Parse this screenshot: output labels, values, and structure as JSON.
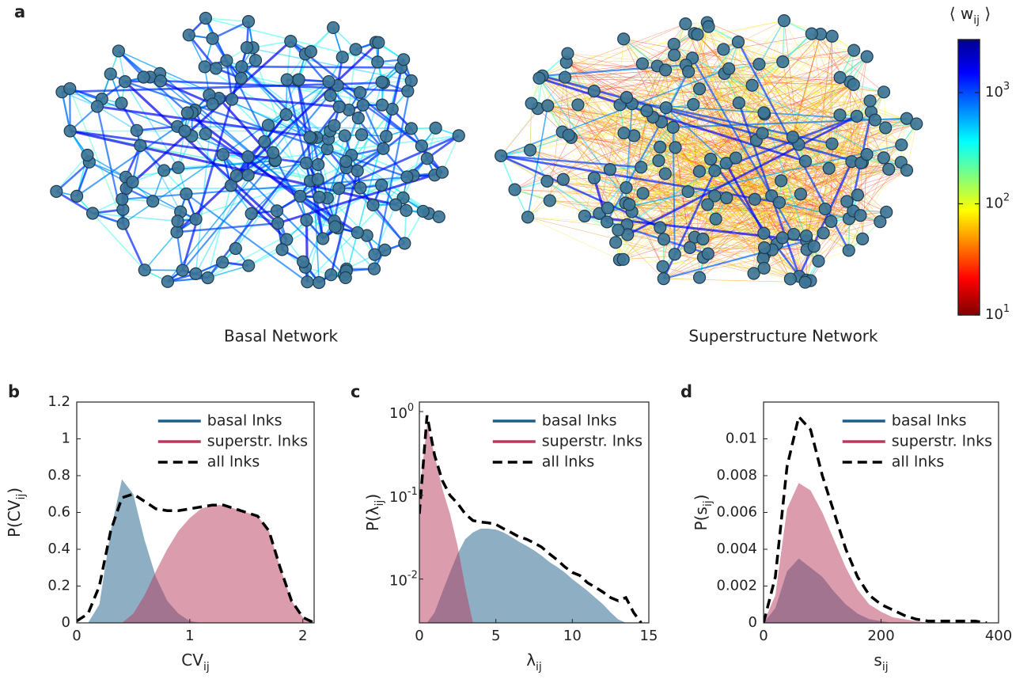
{
  "panel_a": {
    "letter": "a",
    "networks": [
      "Basal Network",
      "Superstructure Network"
    ],
    "colorbar": {
      "label": [
        "⟨ w",
        "ij",
        " ⟩"
      ],
      "log_scale": true,
      "lim": [
        10,
        3000
      ],
      "ticks": [
        {
          "value": 10,
          "label": "10",
          "exponent": "1"
        },
        {
          "value": 100,
          "label": "10",
          "exponent": "2"
        },
        {
          "value": 1000,
          "label": "10",
          "exponent": "3"
        }
      ]
    }
  },
  "chart_data": [
    {
      "type": "area",
      "panel": "b",
      "xlabel": [
        "CV",
        "ij"
      ],
      "ylabel": [
        "P(CV",
        "ij",
        ")"
      ],
      "x": [
        0,
        0.1,
        0.2,
        0.3,
        0.4,
        0.5,
        0.6,
        0.7,
        0.8,
        0.9,
        1,
        1.1,
        1.2,
        1.3,
        1.4,
        1.5,
        1.6,
        1.7,
        1.8,
        1.9,
        2,
        2.1
      ],
      "xlim": [
        0,
        2.1
      ],
      "xticks": [
        0,
        1,
        2
      ],
      "ylim": [
        0,
        1.2
      ],
      "yticks": [
        0,
        0.2,
        0.4,
        0.6,
        0.8,
        1,
        1.2
      ],
      "log_y": false,
      "legend": "upper right",
      "series": [
        {
          "name": "basal lnks",
          "color": "#1d5f88",
          "style": "area",
          "values": [
            0,
            0,
            0.1,
            0.5,
            0.78,
            0.7,
            0.45,
            0.25,
            0.12,
            0.05,
            0.01,
            0,
            0,
            0,
            0,
            0,
            0,
            0,
            0,
            0,
            0,
            0
          ]
        },
        {
          "name": "superstr. lnks",
          "color": "#b83a5c",
          "style": "area",
          "values": [
            0,
            0,
            0,
            0,
            0,
            0.05,
            0.15,
            0.28,
            0.4,
            0.5,
            0.57,
            0.62,
            0.64,
            0.64,
            0.62,
            0.6,
            0.58,
            0.5,
            0.3,
            0.12,
            0.03,
            0
          ]
        },
        {
          "name": "all lnks",
          "color": "#000000",
          "style": "dashed",
          "values": [
            0.01,
            0.05,
            0.2,
            0.5,
            0.68,
            0.7,
            0.66,
            0.62,
            0.61,
            0.61,
            0.62,
            0.63,
            0.64,
            0.64,
            0.62,
            0.6,
            0.58,
            0.5,
            0.3,
            0.12,
            0.03,
            0
          ]
        }
      ]
    },
    {
      "type": "area",
      "panel": "c",
      "xlabel": [
        "λ",
        "ij"
      ],
      "ylabel": [
        "P(λ",
        "ij",
        ")"
      ],
      "x": [
        0,
        0.5,
        1,
        1.5,
        2,
        2.5,
        3,
        3.5,
        4,
        4.5,
        5,
        5.5,
        6,
        6.5,
        7,
        7.5,
        8,
        8.5,
        9,
        9.5,
        10,
        10.5,
        11,
        11.5,
        12,
        12.5,
        13,
        13.5,
        14,
        14.5
      ],
      "xlim": [
        0,
        15
      ],
      "xticks": [
        0,
        5,
        10,
        15
      ],
      "ylim": [
        0.003,
        1.3
      ],
      "log_y": true,
      "legend": "upper right",
      "yticks": [
        {
          "value": 0.01,
          "label": "10",
          "exponent": "-2"
        },
        {
          "value": 0.1,
          "label": "10",
          "exponent": "-1"
        },
        {
          "value": 1,
          "label": "10",
          "exponent": "0"
        }
      ],
      "series": [
        {
          "name": "basal lnks",
          "color": "#1d5f88",
          "style": "area",
          "values": [
            0.003,
            0.003,
            0.004,
            0.007,
            0.012,
            0.02,
            0.03,
            0.036,
            0.04,
            0.04,
            0.039,
            0.036,
            0.032,
            0.028,
            0.025,
            0.022,
            0.019,
            0.016,
            0.014,
            0.012,
            0.01,
            0.0085,
            0.0072,
            0.006,
            0.005,
            0.004,
            0.0033,
            0.003,
            0.003,
            0.003
          ]
        },
        {
          "name": "superstr. lnks",
          "color": "#b83a5c",
          "style": "area",
          "values": [
            0.1,
            0.7,
            0.3,
            0.12,
            0.06,
            0.025,
            0.008,
            0.003,
            0.003,
            0.003,
            0.003,
            0.003,
            0.003,
            0.003,
            0.003,
            0.003,
            0.003,
            0.003,
            0.003,
            0.003,
            0.003,
            0.003,
            0.003,
            0.003,
            0.003,
            0.003,
            0.003,
            0.003,
            0.003,
            0.003
          ]
        },
        {
          "name": "all lnks",
          "color": "#000000",
          "style": "dashed",
          "values": [
            0.06,
            0.9,
            0.3,
            0.15,
            0.1,
            0.08,
            0.06,
            0.05,
            0.048,
            0.047,
            0.045,
            0.04,
            0.036,
            0.032,
            0.03,
            0.027,
            0.024,
            0.02,
            0.017,
            0.014,
            0.012,
            0.011,
            0.009,
            0.008,
            0.007,
            0.006,
            0.0055,
            0.006,
            0.004,
            0.003
          ]
        }
      ]
    },
    {
      "type": "area",
      "panel": "d",
      "xlabel": [
        "s",
        "ij"
      ],
      "ylabel": [
        "P(s",
        "ij",
        ")"
      ],
      "x": [
        0,
        20,
        40,
        60,
        80,
        100,
        120,
        140,
        160,
        180,
        200,
        220,
        240,
        260,
        280,
        300,
        320,
        340,
        360,
        380
      ],
      "xlim": [
        0,
        400
      ],
      "xticks": [
        0,
        200,
        400
      ],
      "ylim": [
        0,
        0.012
      ],
      "yticks": [
        0,
        0.002,
        0.004,
        0.006,
        0.008,
        0.01
      ],
      "log_y": false,
      "legend": "upper right",
      "series": [
        {
          "name": "basal lnks",
          "color": "#1d5f88",
          "style": "area",
          "values": [
            0,
            0.0008,
            0.0028,
            0.0035,
            0.003,
            0.0025,
            0.0017,
            0.001,
            0.0005,
            0.0002,
            0.0001,
            0,
            0,
            0,
            0,
            0,
            0,
            0,
            0,
            0
          ]
        },
        {
          "name": "superstr. lnks",
          "color": "#b83a5c",
          "style": "area",
          "values": [
            0,
            0.0015,
            0.0062,
            0.0076,
            0.0072,
            0.006,
            0.0045,
            0.003,
            0.0018,
            0.001,
            0.0006,
            0.0003,
            0.0002,
            0.0001,
            0,
            0,
            0,
            0,
            0,
            0
          ]
        },
        {
          "name": "all lnks",
          "color": "#000000",
          "style": "dashed",
          "values": [
            0,
            0.0025,
            0.0085,
            0.0112,
            0.0105,
            0.008,
            0.006,
            0.004,
            0.0025,
            0.0015,
            0.001,
            0.0007,
            0.0004,
            0.0002,
            0.0001,
            0.0001,
            0.0001,
            0.0001,
            0.0001,
            0
          ]
        }
      ]
    }
  ]
}
